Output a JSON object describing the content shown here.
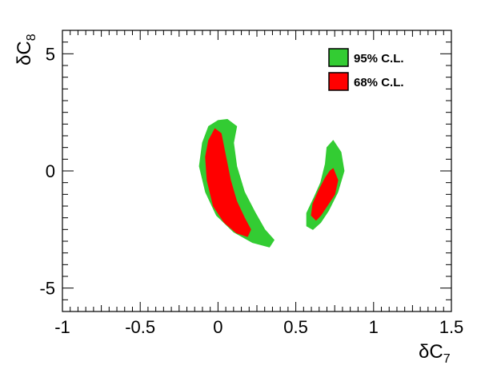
{
  "chart_data": {
    "type": "contour",
    "xlabel": "δC",
    "xlabel_sub": "7",
    "ylabel": "δC",
    "ylabel_sub": "8",
    "xlim": [
      -1,
      1.5
    ],
    "ylim": [
      -6,
      6
    ],
    "x_ticks": [
      -1,
      -0.5,
      0,
      0.5,
      1,
      1.5
    ],
    "x_tick_labels": [
      "-1",
      "-0.5",
      "0",
      "0.5",
      "1",
      "1.5"
    ],
    "y_ticks": [
      -5,
      0,
      5
    ],
    "y_tick_labels": [
      "-5",
      "0",
      "5"
    ],
    "legend_position": "top-right",
    "grid": false,
    "series": [
      {
        "name": "95% C.L.",
        "color": "#33cc33",
        "regions": [
          [
            [
              0.06,
              2.2
            ],
            [
              0.12,
              1.9
            ],
            [
              0.1,
              1.2
            ],
            [
              0.12,
              0.2
            ],
            [
              0.17,
              -0.9
            ],
            [
              0.24,
              -1.8
            ],
            [
              0.3,
              -2.5
            ],
            [
              0.36,
              -2.95
            ],
            [
              0.33,
              -3.25
            ],
            [
              0.22,
              -3.05
            ],
            [
              0.1,
              -2.6
            ],
            [
              -0.01,
              -1.9
            ],
            [
              -0.08,
              -0.9
            ],
            [
              -0.12,
              0.2
            ],
            [
              -0.1,
              1.2
            ],
            [
              -0.06,
              1.9
            ],
            [
              0.0,
              2.15
            ]
          ],
          [
            [
              0.74,
              1.3
            ],
            [
              0.79,
              0.8
            ],
            [
              0.81,
              0.0
            ],
            [
              0.77,
              -0.9
            ],
            [
              0.71,
              -1.7
            ],
            [
              0.66,
              -2.2
            ],
            [
              0.61,
              -2.5
            ],
            [
              0.57,
              -2.35
            ],
            [
              0.57,
              -1.8
            ],
            [
              0.62,
              -1.1
            ],
            [
              0.66,
              -0.5
            ],
            [
              0.69,
              0.3
            ],
            [
              0.7,
              1.0
            ]
          ]
        ]
      },
      {
        "name": "68% C.L.",
        "color": "#ff0000",
        "regions": [
          [
            [
              -0.02,
              1.8
            ],
            [
              0.02,
              1.6
            ],
            [
              0.05,
              0.6
            ],
            [
              0.08,
              -0.4
            ],
            [
              0.12,
              -1.3
            ],
            [
              0.17,
              -2.0
            ],
            [
              0.21,
              -2.5
            ],
            [
              0.19,
              -2.8
            ],
            [
              0.12,
              -2.65
            ],
            [
              0.04,
              -2.2
            ],
            [
              -0.03,
              -1.5
            ],
            [
              -0.07,
              -0.4
            ],
            [
              -0.08,
              0.6
            ],
            [
              -0.06,
              1.3
            ]
          ],
          [
            [
              0.74,
              0.1
            ],
            [
              0.77,
              -0.4
            ],
            [
              0.75,
              -1.0
            ],
            [
              0.7,
              -1.5
            ],
            [
              0.66,
              -1.9
            ],
            [
              0.63,
              -2.1
            ],
            [
              0.6,
              -1.9
            ],
            [
              0.61,
              -1.4
            ],
            [
              0.65,
              -0.8
            ],
            [
              0.69,
              -0.3
            ],
            [
              0.72,
              0.0
            ]
          ]
        ]
      }
    ]
  }
}
